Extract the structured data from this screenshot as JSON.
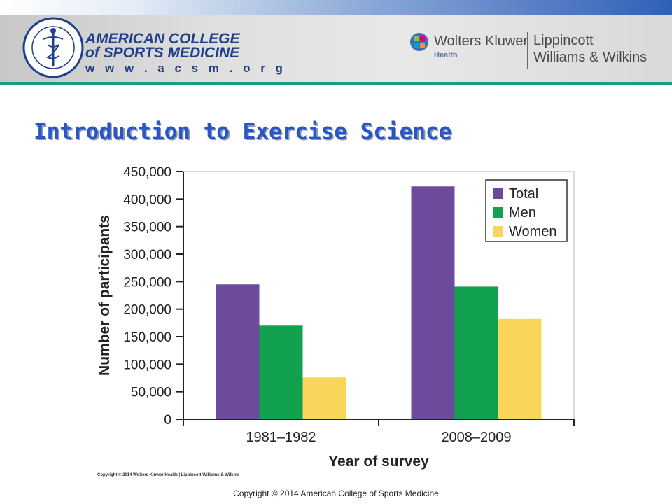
{
  "header": {
    "org_name_line1": "AMERICAN COLLEGE",
    "org_name_line2": "of SPORTS MEDICINE",
    "org_url": "w w w . a c s m . o r g",
    "publisher_name": "Wolters Kluwer",
    "publisher_division": "Health",
    "imprint_line1": "Lippincott",
    "imprint_line2": "Williams & Wilkins",
    "colors": {
      "banner_rule": "#1a9a8a",
      "logo_blue": "#1f3f8a"
    }
  },
  "slide": {
    "title": "Introduction to Exercise Science",
    "title_color": "#2a55c8"
  },
  "chart_data": {
    "type": "bar",
    "categories": [
      "1981–1982",
      "2008–2009"
    ],
    "series": [
      {
        "name": "Total",
        "values": [
          245000,
          423000
        ],
        "color": "#6c4a9c"
      },
      {
        "name": "Men",
        "values": [
          170000,
          241000
        ],
        "color": "#12a14f"
      },
      {
        "name": "Women",
        "values": [
          76000,
          182000
        ],
        "color": "#fad55c"
      }
    ],
    "y_ticks": [
      "0",
      "50,000",
      "100,000",
      "150,000",
      "200,000",
      "250,000",
      "300,000",
      "350,000",
      "400,000",
      "450,000"
    ],
    "ylim": [
      0,
      450000
    ],
    "xlabel": "Year of survey",
    "ylabel": "Number of participants",
    "legend_position": "top-right",
    "grid": false
  },
  "chart_copyright": "Copyright © 2014 Wolters Kluwer Health | Lippincott Williams & Wilkins",
  "footer": {
    "copyright": "Copyright © 2014 American College of Sports Medicine"
  }
}
